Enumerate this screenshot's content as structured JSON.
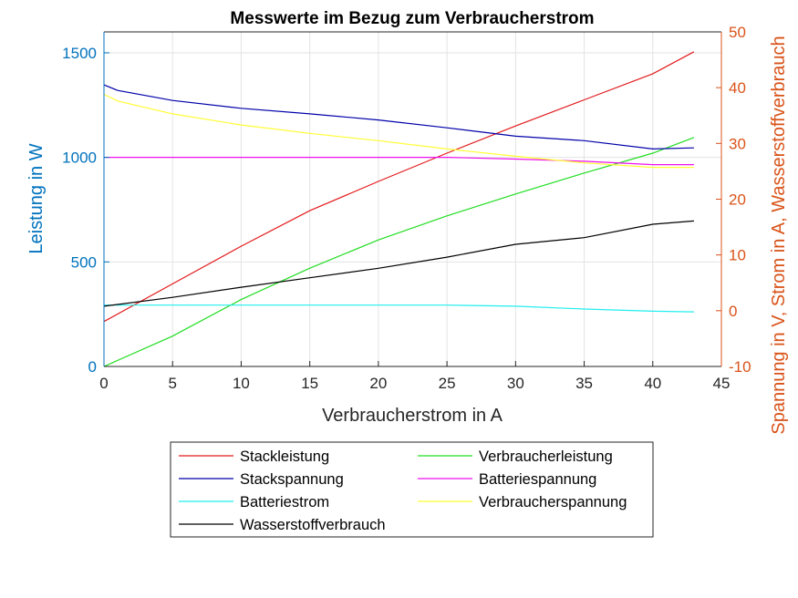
{
  "chart_data": {
    "type": "line",
    "title": "Messwerte im Bezug zum Verbraucherstrom",
    "xlabel": "Verbraucherstrom in A",
    "ylabel_left": "Leistung in W",
    "ylabel_right": "Spannung in V, Strom in A, Wasserstoffverbrauch",
    "xlim": [
      0,
      45
    ],
    "ylim_left": [
      0,
      1600
    ],
    "ylim_right": [
      -10,
      50
    ],
    "xticks": [
      "0",
      "5",
      "10",
      "15",
      "20",
      "25",
      "30",
      "35",
      "40",
      "45"
    ],
    "yticks_left": [
      "0",
      "500",
      "1000",
      "1500"
    ],
    "yticks_right": [
      "-10",
      "0",
      "10",
      "20",
      "30",
      "40",
      "50"
    ],
    "grid": true,
    "legend_position": "bottom",
    "series": [
      {
        "name": "Stackleistung",
        "axis": "left",
        "color": "#e31a1c",
        "x": [
          0,
          5,
          10,
          15,
          20,
          25,
          30,
          35,
          40,
          43
        ],
        "y": [
          215,
          395,
          575,
          745,
          885,
          1020,
          1150,
          1275,
          1400,
          1505
        ]
      },
      {
        "name": "Verbraucherleistung",
        "axis": "left",
        "color": "#22dd22",
        "x": [
          0,
          5,
          10,
          15,
          20,
          25,
          30,
          35,
          40,
          43
        ],
        "y": [
          0,
          145,
          320,
          470,
          605,
          720,
          825,
          925,
          1020,
          1095
        ]
      },
      {
        "name": "Stackspannung",
        "axis": "right",
        "color": "#0000aa",
        "x": [
          0,
          1,
          5,
          10,
          15,
          20,
          25,
          30,
          35,
          40,
          43
        ],
        "y": [
          40.5,
          39.5,
          37.7,
          36.3,
          35.3,
          34.2,
          32.8,
          31.3,
          30.5,
          29.0,
          29.2
        ]
      },
      {
        "name": "Batteriespannung",
        "axis": "right",
        "color": "#ee11ee",
        "x": [
          0,
          5,
          10,
          15,
          20,
          25,
          30,
          35,
          40,
          43
        ],
        "y": [
          27.5,
          27.5,
          27.5,
          27.5,
          27.5,
          27.5,
          27.2,
          26.8,
          26.2,
          26.2
        ]
      },
      {
        "name": "Batteriestrom",
        "axis": "right",
        "color": "#22eeee",
        "x": [
          0,
          5,
          10,
          15,
          20,
          25,
          30,
          35,
          40,
          43
        ],
        "y": [
          1.0,
          1.0,
          1.0,
          1.0,
          1.0,
          1.0,
          0.8,
          0.3,
          -0.1,
          -0.2
        ]
      },
      {
        "name": "Verbraucherspannung",
        "axis": "right",
        "color": "#ffff33",
        "x": [
          0,
          1,
          5,
          10,
          15,
          20,
          25,
          30,
          35,
          40,
          43
        ],
        "y": [
          38.8,
          37.6,
          35.3,
          33.3,
          31.8,
          30.5,
          29.0,
          27.7,
          26.5,
          25.7,
          25.7
        ]
      },
      {
        "name": "Wasserstoffverbrauch",
        "axis": "right",
        "color": "#000000",
        "x": [
          0,
          5,
          10,
          15,
          20,
          25,
          30,
          35,
          40,
          43
        ],
        "y": [
          0.8,
          2.4,
          4.2,
          5.9,
          7.6,
          9.6,
          11.9,
          13.1,
          15.5,
          16.1
        ]
      }
    ],
    "legend_order": [
      "Stackleistung",
      "Verbraucherleistung",
      "Stackspannung",
      "Batteriespannung",
      "Batteriestrom",
      "Verbraucherspannung",
      "Wasserstoffverbrauch"
    ]
  }
}
